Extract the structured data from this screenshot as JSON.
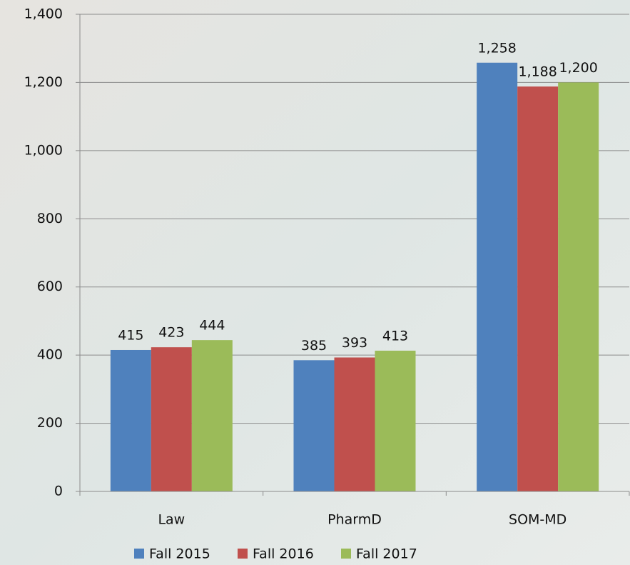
{
  "chart_data": {
    "type": "bar",
    "categories": [
      "Law",
      "PharmD",
      "SOM-MD"
    ],
    "series": [
      {
        "name": "Fall 2015",
        "color": "#4f81bd",
        "values": [
          415,
          385,
          1258
        ],
        "value_labels": [
          "415",
          "385",
          "1,258"
        ]
      },
      {
        "name": "Fall 2016",
        "color": "#c0504d",
        "values": [
          423,
          393,
          1188
        ],
        "value_labels": [
          "423",
          "393",
          "1,188"
        ]
      },
      {
        "name": "Fall 2017",
        "color": "#9bbb59",
        "values": [
          444,
          413,
          1200
        ],
        "value_labels": [
          "444",
          "413",
          "1,200"
        ]
      }
    ],
    "ylim": [
      0,
      1400
    ],
    "yticks": [
      0,
      200,
      400,
      600,
      800,
      {
        "value": 1000,
        "label": "1,000"
      },
      {
        "value": 1200,
        "label": "1,200"
      },
      {
        "value": 1400,
        "label": "1,400"
      }
    ],
    "grid": true,
    "legend": "bottom"
  }
}
